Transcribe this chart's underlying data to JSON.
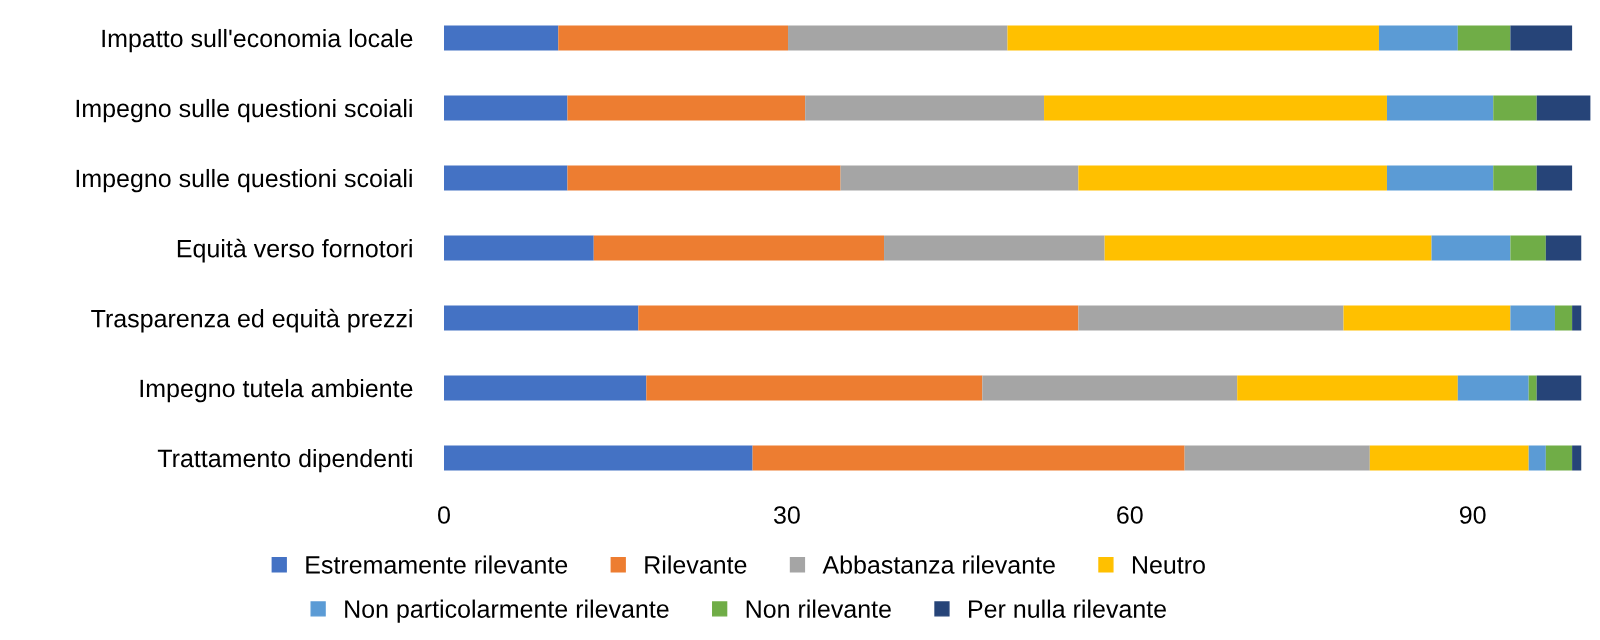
{
  "chart_data": {
    "type": "bar",
    "orientation": "horizontal",
    "stacked": true,
    "categories": [
      "Impatto sull'economia locale",
      "Impegno sulle questioni scoiali",
      "Impegno sulle questioni scoiali",
      "Equità verso fornotori",
      "Trasparenza ed equità prezzi",
      "Impegno tutela ambiente",
      "Trattamento dipendenti"
    ],
    "series": [
      {
        "name": "Estremamente rilevante",
        "color": "#4472c4",
        "values": [
          10.0,
          10.8,
          10.8,
          13.1,
          17.0,
          17.7,
          27.0
        ]
      },
      {
        "name": "Rilevante",
        "color": "#ed7d31",
        "values": [
          20.1,
          20.8,
          23.9,
          25.4,
          38.5,
          29.4,
          37.8
        ]
      },
      {
        "name": "Abbastanza rilevante",
        "color": "#a5a5a5",
        "values": [
          19.2,
          20.9,
          20.8,
          19.3,
          23.2,
          22.3,
          16.2
        ]
      },
      {
        "name": "Neutro",
        "color": "#ffc000",
        "values": [
          32.5,
          30.0,
          27.0,
          28.6,
          14.6,
          19.3,
          13.9
        ]
      },
      {
        "name": "Non particolarmente rilevante",
        "color": "#5b9bd5",
        "values": [
          6.9,
          9.3,
          9.3,
          6.9,
          3.9,
          6.2,
          1.5
        ]
      },
      {
        "name": "Non rilevante",
        "color": "#70ad47",
        "values": [
          4.6,
          3.8,
          3.8,
          3.1,
          1.5,
          0.7,
          2.3
        ]
      },
      {
        "name": "Per nulla rilevante",
        "color": "#264478",
        "values": [
          5.4,
          4.7,
          3.1,
          3.1,
          0.8,
          3.9,
          0.8
        ]
      }
    ],
    "xlim": [
      0,
      101
    ],
    "xticks": [
      0,
      30,
      60,
      90
    ],
    "grid": false,
    "legend": "bottom"
  }
}
